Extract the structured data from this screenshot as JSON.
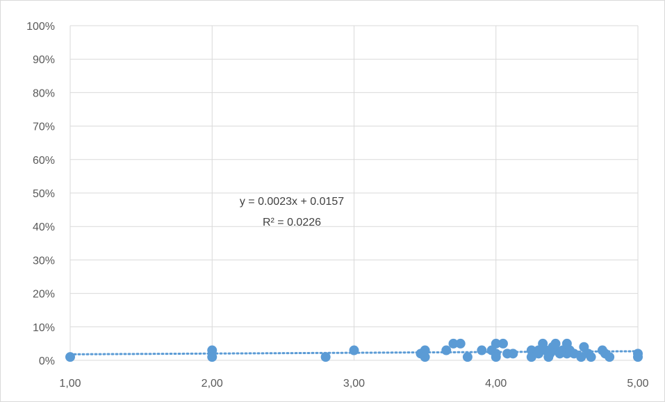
{
  "chart_data": {
    "type": "scatter",
    "title": "",
    "xlabel": "",
    "ylabel": "",
    "xlim": [
      1.0,
      5.0
    ],
    "ylim": [
      0,
      1.0
    ],
    "x_ticks": [
      1,
      2,
      3,
      4,
      5
    ],
    "x_tick_labels": [
      "1,00",
      "2,00",
      "3,00",
      "4,00",
      "5,00"
    ],
    "y_ticks": [
      0,
      0.1,
      0.2,
      0.3,
      0.4,
      0.5,
      0.6,
      0.7,
      0.8,
      0.9,
      1.0
    ],
    "y_tick_labels": [
      "0%",
      "10%",
      "20%",
      "30%",
      "40%",
      "50%",
      "60%",
      "70%",
      "80%",
      "90%",
      "100%"
    ],
    "grid": true,
    "legend": "none",
    "colors": {
      "points": "#5b9bd5",
      "trendline": "#5b9bd5",
      "grid": "#d9d9d9"
    },
    "series": [
      {
        "points": [
          [
            1.0,
            0.01
          ],
          [
            2.0,
            0.03
          ],
          [
            2.0,
            0.01
          ],
          [
            2.8,
            0.01
          ],
          [
            3.0,
            0.03
          ],
          [
            3.47,
            0.02
          ],
          [
            3.5,
            0.03
          ],
          [
            3.5,
            0.01
          ],
          [
            3.65,
            0.03
          ],
          [
            3.7,
            0.05
          ],
          [
            3.75,
            0.05
          ],
          [
            3.8,
            0.01
          ],
          [
            3.9,
            0.03
          ],
          [
            3.97,
            0.03
          ],
          [
            4.0,
            0.05
          ],
          [
            4.0,
            0.02
          ],
          [
            4.0,
            0.01
          ],
          [
            4.05,
            0.05
          ],
          [
            4.08,
            0.02
          ],
          [
            4.12,
            0.02
          ],
          [
            4.25,
            0.03
          ],
          [
            4.25,
            0.01
          ],
          [
            4.3,
            0.03
          ],
          [
            4.3,
            0.02
          ],
          [
            4.33,
            0.05
          ],
          [
            4.35,
            0.03
          ],
          [
            4.37,
            0.01
          ],
          [
            4.38,
            0.02
          ],
          [
            4.4,
            0.04
          ],
          [
            4.42,
            0.03
          ],
          [
            4.42,
            0.05
          ],
          [
            4.45,
            0.02
          ],
          [
            4.47,
            0.03
          ],
          [
            4.5,
            0.05
          ],
          [
            4.5,
            0.02
          ],
          [
            4.52,
            0.03
          ],
          [
            4.55,
            0.02
          ],
          [
            4.6,
            0.01
          ],
          [
            4.62,
            0.04
          ],
          [
            4.65,
            0.02
          ],
          [
            4.67,
            0.01
          ],
          [
            4.75,
            0.03
          ],
          [
            4.77,
            0.02
          ],
          [
            4.8,
            0.01
          ],
          [
            5.0,
            0.02
          ],
          [
            5.0,
            0.01
          ]
        ]
      }
    ],
    "trendline": {
      "type": "linear",
      "slope": 0.0023,
      "intercept": 0.0157,
      "equation_label": "y = 0.0023x + 0.0157",
      "r2_label": "R² = 0.0226"
    }
  }
}
